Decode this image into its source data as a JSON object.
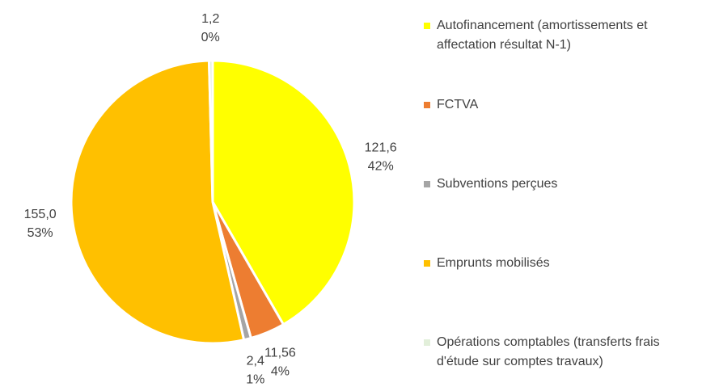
{
  "chart_data": {
    "type": "pie",
    "categories": [
      "Autofinancement (amortissements et affectation résultat N-1)",
      "FCTVA",
      "Subventions perçues",
      "Emprunts mobilisés",
      "Opérations comptables (transferts frais d'étude sur comptes travaux)"
    ],
    "values": [
      121.6,
      11.56,
      2.4,
      155.0,
      1.2
    ],
    "value_labels": [
      "121,6",
      "11,56",
      "2,4",
      "155,0",
      "1,2"
    ],
    "percent_labels": [
      "42%",
      "4%",
      "1%",
      "53%",
      "0%"
    ],
    "colors": [
      "#FFFF00",
      "#ED7D31",
      "#A5A5A5",
      "#FFC000",
      "#E2EFDA"
    ],
    "legend": "right"
  }
}
